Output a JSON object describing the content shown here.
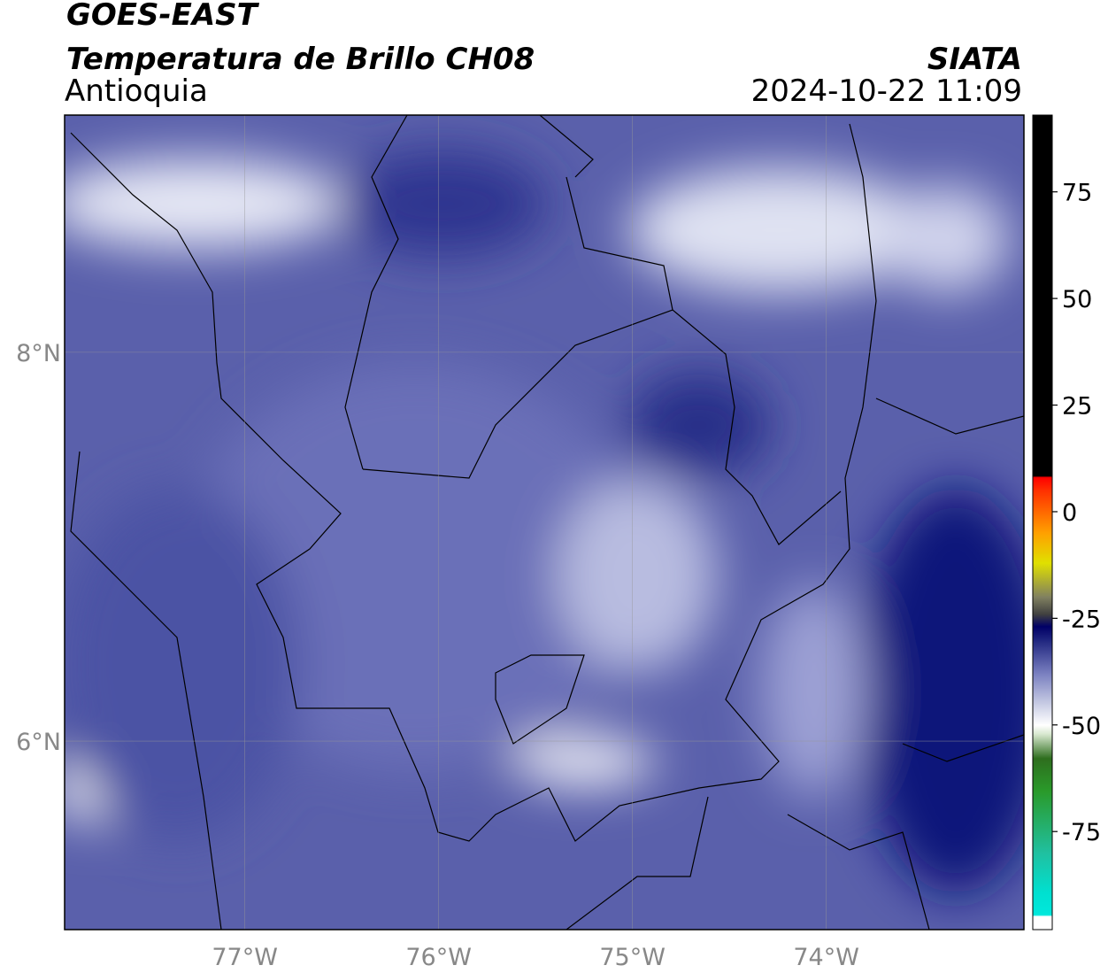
{
  "header": {
    "line1": "GOES-EAST",
    "title": "Temperatura de Brillo CH08",
    "region": "Antioquia",
    "source": "SIATA",
    "datetime": "2024-10-22 11:09"
  },
  "map": {
    "xlim": [
      -77.93,
      -72.98
    ],
    "ylim": [
      5.03,
      9.22
    ],
    "xticks": [
      {
        "value": -77,
        "label": "77°W"
      },
      {
        "value": -76,
        "label": "76°W"
      },
      {
        "value": -75,
        "label": "75°W"
      },
      {
        "value": -74,
        "label": "74°W"
      }
    ],
    "yticks": [
      {
        "value": 6,
        "label": "6°N"
      },
      {
        "value": 8,
        "label": "8°N"
      }
    ]
  },
  "colorbar": {
    "lim": [
      -98,
      93
    ],
    "ticks": [
      -75,
      -50,
      -25,
      0,
      25,
      50,
      75
    ]
  }
}
